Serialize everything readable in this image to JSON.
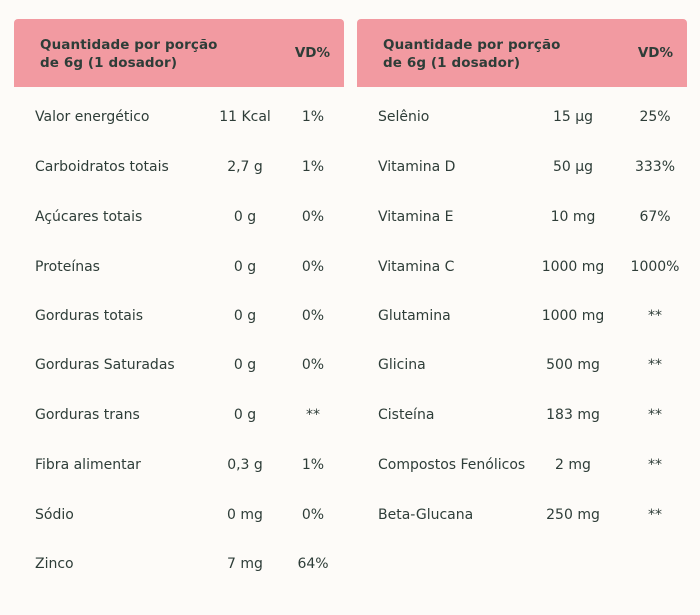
{
  "left_table": {
    "header": {
      "title_line1": "Quantidade por porção",
      "title_line2": "de 6g (1 dosador)",
      "vd_label": "VD%"
    },
    "rows": [
      {
        "name": "Valor energético",
        "quantity": "11 Kcal",
        "vd": "1%"
      },
      {
        "name": "Carboidratos totais",
        "quantity": "2,7 g",
        "vd": "1%"
      },
      {
        "name": "Açúcares totais",
        "quantity": "0 g",
        "vd": "0%"
      },
      {
        "name": "Proteínas",
        "quantity": "0 g",
        "vd": "0%"
      },
      {
        "name": "Gorduras totais",
        "quantity": "0 g",
        "vd": "0%"
      },
      {
        "name": "Gorduras Saturadas",
        "quantity": "0 g",
        "vd": "0%"
      },
      {
        "name": "Gorduras trans",
        "quantity": "0 g",
        "vd": "**"
      },
      {
        "name": "Fibra alimentar",
        "quantity": "0,3 g",
        "vd": "1%"
      },
      {
        "name": "Sódio",
        "quantity": "0 mg",
        "vd": "0%"
      },
      {
        "name": "Zinco",
        "quantity": "7 mg",
        "vd": "64%"
      }
    ]
  },
  "right_table": {
    "header": {
      "title_line1": "Quantidade por porção",
      "title_line2": "de 6g (1 dosador)",
      "vd_label": "VD%"
    },
    "rows": [
      {
        "name": "Selênio",
        "quantity": "15 µg",
        "vd": "25%"
      },
      {
        "name": "Vitamina D",
        "quantity": "50 µg",
        "vd": "333%"
      },
      {
        "name": "Vitamina E",
        "quantity": "10 mg",
        "vd": "67%"
      },
      {
        "name": "Vitamina C",
        "quantity": "1000 mg",
        "vd": "1000%"
      },
      {
        "name": "Glutamina",
        "quantity": "1000 mg",
        "vd": "**"
      },
      {
        "name": "Glicina",
        "quantity": "500 mg",
        "vd": "**"
      },
      {
        "name": "Cisteína",
        "quantity": "183 mg",
        "vd": "**"
      },
      {
        "name": "Compostos Fenólicos",
        "quantity": "2 mg",
        "vd": "**"
      },
      {
        "name": "Beta-Glucana",
        "quantity": "250 mg",
        "vd": "**"
      }
    ]
  },
  "colors": {
    "header_bg": "#f29aa1",
    "page_bg": "#fdfbf8",
    "text": "#2e3d38"
  }
}
